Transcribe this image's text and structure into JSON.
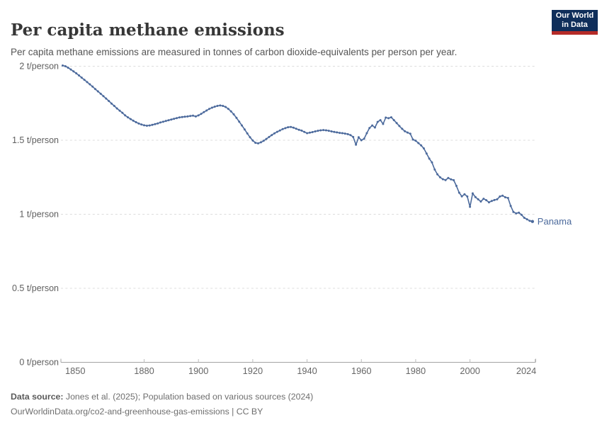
{
  "header": {
    "title": "Per capita methane emissions",
    "subtitle": "Per capita methane emissions are measured in tonnes of carbon dioxide-equivalents per person per year.",
    "logo": {
      "line1": "Our World",
      "line2": "in Data",
      "bg_color": "#0f2e5a",
      "accent_color": "#b52b28"
    }
  },
  "chart_data": {
    "type": "line",
    "title": "Per capita methane emissions",
    "unit": "t/person",
    "xlabel": "",
    "ylabel": "",
    "grid": "horizontal-dashed",
    "legend_position": "end-of-line-label",
    "line_color": "#4c6a9c",
    "xlim": [
      1850,
      2024
    ],
    "ylim": [
      0,
      2
    ],
    "x_ticks": [
      1850,
      1880,
      1900,
      1920,
      1940,
      1960,
      1980,
      2000,
      2024
    ],
    "y_ticks": [
      0,
      0.5,
      1,
      1.5,
      2
    ],
    "y_tick_suffix": " t/person",
    "series": [
      {
        "name": "Panama",
        "start_year": 1850,
        "end_year": 2023,
        "values": [
          2.005,
          2.0,
          1.99,
          1.978,
          1.965,
          1.952,
          1.938,
          1.923,
          1.908,
          1.893,
          1.878,
          1.862,
          1.846,
          1.83,
          1.814,
          1.798,
          1.782,
          1.765,
          1.748,
          1.732,
          1.715,
          1.7,
          1.685,
          1.668,
          1.655,
          1.643,
          1.632,
          1.622,
          1.613,
          1.606,
          1.601,
          1.598,
          1.6,
          1.604,
          1.609,
          1.614,
          1.62,
          1.625,
          1.63,
          1.635,
          1.64,
          1.645,
          1.65,
          1.654,
          1.657,
          1.659,
          1.661,
          1.664,
          1.666,
          1.661,
          1.668,
          1.678,
          1.69,
          1.701,
          1.712,
          1.72,
          1.727,
          1.732,
          1.735,
          1.732,
          1.725,
          1.712,
          1.695,
          1.675,
          1.651,
          1.626,
          1.6,
          1.573,
          1.546,
          1.52,
          1.498,
          1.483,
          1.479,
          1.486,
          1.496,
          1.509,
          1.522,
          1.535,
          1.547,
          1.557,
          1.566,
          1.575,
          1.582,
          1.588,
          1.59,
          1.585,
          1.578,
          1.571,
          1.565,
          1.556,
          1.548,
          1.551,
          1.555,
          1.56,
          1.564,
          1.567,
          1.569,
          1.567,
          1.564,
          1.56,
          1.556,
          1.553,
          1.55,
          1.548,
          1.545,
          1.541,
          1.535,
          1.522,
          1.47,
          1.52,
          1.5,
          1.51,
          1.548,
          1.583,
          1.6,
          1.586,
          1.624,
          1.636,
          1.61,
          1.653,
          1.649,
          1.655,
          1.636,
          1.616,
          1.596,
          1.577,
          1.561,
          1.552,
          1.544,
          1.505,
          1.497,
          1.481,
          1.465,
          1.445,
          1.41,
          1.376,
          1.35,
          1.302,
          1.27,
          1.25,
          1.237,
          1.231,
          1.245,
          1.236,
          1.23,
          1.192,
          1.146,
          1.121,
          1.135,
          1.12,
          1.05,
          1.141,
          1.116,
          1.101,
          1.086,
          1.105,
          1.095,
          1.081,
          1.09,
          1.096,
          1.101,
          1.12,
          1.126,
          1.115,
          1.11,
          1.056,
          1.016,
          1.006,
          1.011,
          0.996,
          0.976,
          0.966,
          0.956,
          0.951
        ]
      }
    ]
  },
  "footer": {
    "source_label": "Data source:",
    "source_text": "Jones et al. (2025); Population based on various sources (2024)",
    "attribution": "OurWorldinData.org/co2-and-greenhouse-gas-emissions | CC BY"
  }
}
